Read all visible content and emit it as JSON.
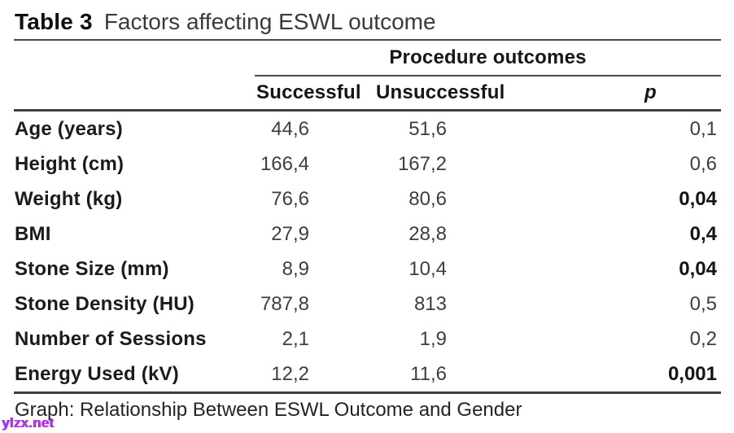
{
  "title": {
    "label": "Table 3",
    "text": "Factors affecting ESWL outcome"
  },
  "table": {
    "group_header": "Procedure outcomes",
    "columns": {
      "successful": "Successful",
      "unsuccessful": "Unsuccessful",
      "p": "p"
    },
    "rows": [
      {
        "label": "Age (years)",
        "successful": "44,6",
        "unsuccessful": "51,6",
        "p": "0,1",
        "p_bold": false
      },
      {
        "label": "Height (cm)",
        "successful": "166,4",
        "unsuccessful": "167,2",
        "p": "0,6",
        "p_bold": false
      },
      {
        "label": "Weight (kg)",
        "successful": "76,6",
        "unsuccessful": "80,6",
        "p": "0,04",
        "p_bold": true
      },
      {
        "label": "BMI",
        "successful": "27,9",
        "unsuccessful": "28,8",
        "p": "0,4",
        "p_bold": true
      },
      {
        "label": "Stone Size (mm)",
        "successful": "8,9",
        "unsuccessful": "10,4",
        "p": "0,04",
        "p_bold": true
      },
      {
        "label": "Stone Density (HU)",
        "successful": "787,8",
        "unsuccessful": "813",
        "p": "0,5",
        "p_bold": false
      },
      {
        "label": "Number of Sessions",
        "successful": "2,1",
        "unsuccessful": "1,9",
        "p": "0,2",
        "p_bold": false
      },
      {
        "label": "Energy Used (kV)",
        "successful": "12,2",
        "unsuccessful": "11,6",
        "p": "0,001",
        "p_bold": true
      }
    ]
  },
  "caption": "Graph: Relationship Between ESWL Outcome and Gender",
  "watermark": "ylzx.net",
  "colors": {
    "watermark": "#c92fd9",
    "rule": "#4a4a4c",
    "text": "#1b1b1d"
  },
  "chart_data": {
    "type": "table",
    "title": "Table 3 Factors affecting ESWL outcome",
    "columns": [
      "",
      "Successful",
      "Unsuccessful",
      "p"
    ],
    "rows": [
      [
        "Age (years)",
        "44,6",
        "51,6",
        "0,1"
      ],
      [
        "Height (cm)",
        "166,4",
        "167,2",
        "0,6"
      ],
      [
        "Weight (kg)",
        "76,6",
        "80,6",
        "0,04"
      ],
      [
        "BMI",
        "27,9",
        "28,8",
        "0,4"
      ],
      [
        "Stone Size (mm)",
        "8,9",
        "10,4",
        "0,04"
      ],
      [
        "Stone Density (HU)",
        "787,8",
        "813",
        "0,5"
      ],
      [
        "Number of Sessions",
        "2,1",
        "1,9",
        "0,2"
      ],
      [
        "Energy Used (kV)",
        "12,2",
        "11,6",
        "0,001"
      ]
    ]
  }
}
